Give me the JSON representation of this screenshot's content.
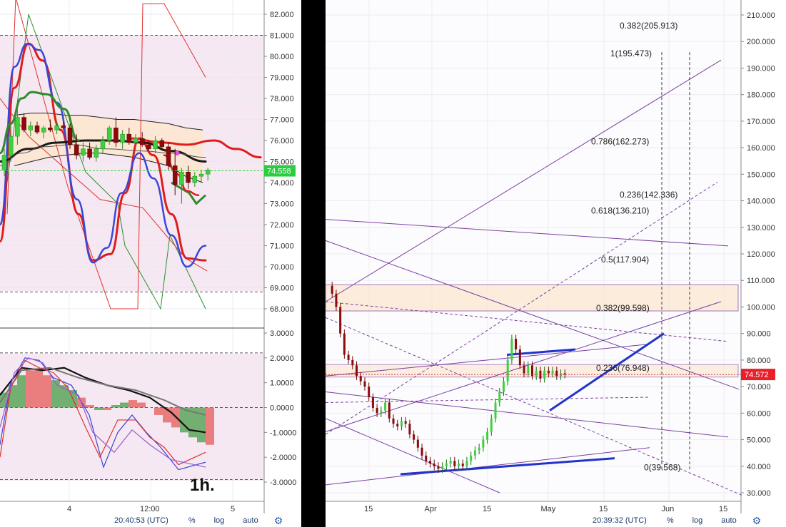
{
  "chart_data": [
    {
      "type": "candlestick",
      "timeframe_label": "1h.",
      "price_axis": {
        "ticks": [
          "82.000",
          "81.000",
          "80.000",
          "79.000",
          "78.000",
          "77.000",
          "76.000",
          "75.000",
          "74.000",
          "73.000",
          "72.000",
          "71.000",
          "70.000",
          "69.000",
          "68.000"
        ],
        "ylim": [
          67.4,
          82.4
        ]
      },
      "last_price": "74.558",
      "last_price_color": "#2ecc40",
      "x_ticks": [
        "4",
        "12:00",
        "5"
      ],
      "oscillator": {
        "ticks": [
          "3.0000",
          "2.0000",
          "1.0000",
          "0.0000",
          "-1.0000",
          "-2.0000",
          "-3.0000"
        ],
        "ylim": [
          -3.3,
          3.3
        ],
        "histogram": [
          0.6,
          0.9,
          1.3,
          1.5,
          1.5,
          1.3,
          1.1,
          0.9,
          0.7,
          0.4,
          0.1,
          -0.1,
          -0.1,
          0.1,
          0.2,
          0.3,
          0.2,
          0.0,
          -0.3,
          -0.6,
          -0.8,
          -1.0,
          -1.2,
          -1.4,
          -1.5
        ]
      },
      "candles": [
        {
          "o": 74.6,
          "h": 75.6,
          "l": 74.3,
          "c": 75.3
        },
        {
          "o": 75.3,
          "h": 76.8,
          "l": 75.0,
          "c": 76.2
        },
        {
          "o": 76.2,
          "h": 77.5,
          "l": 75.8,
          "c": 77.1
        },
        {
          "o": 77.1,
          "h": 77.3,
          "l": 76.4,
          "c": 76.5
        },
        {
          "o": 76.5,
          "h": 76.9,
          "l": 76.2,
          "c": 76.7
        },
        {
          "o": 76.7,
          "h": 76.9,
          "l": 76.3,
          "c": 76.4
        },
        {
          "o": 76.4,
          "h": 76.7,
          "l": 76.1,
          "c": 76.6
        },
        {
          "o": 76.6,
          "h": 77.0,
          "l": 76.4,
          "c": 76.5
        },
        {
          "o": 76.5,
          "h": 76.9,
          "l": 76.3,
          "c": 76.7
        },
        {
          "o": 76.7,
          "h": 76.9,
          "l": 76.5,
          "c": 76.6
        },
        {
          "o": 76.6,
          "h": 76.8,
          "l": 75.6,
          "c": 75.8
        },
        {
          "o": 75.8,
          "h": 76.3,
          "l": 75.1,
          "c": 75.3
        },
        {
          "o": 75.3,
          "h": 75.9,
          "l": 75.0,
          "c": 75.6
        },
        {
          "o": 75.6,
          "h": 75.9,
          "l": 75.1,
          "c": 75.2
        },
        {
          "o": 75.2,
          "h": 75.8,
          "l": 75.0,
          "c": 75.6
        },
        {
          "o": 75.6,
          "h": 76.2,
          "l": 75.4,
          "c": 76.0
        },
        {
          "o": 76.0,
          "h": 76.7,
          "l": 75.8,
          "c": 76.6
        },
        {
          "o": 76.6,
          "h": 77.1,
          "l": 75.7,
          "c": 75.9
        },
        {
          "o": 75.9,
          "h": 76.5,
          "l": 75.6,
          "c": 76.3
        },
        {
          "o": 76.3,
          "h": 76.6,
          "l": 75.8,
          "c": 75.9
        },
        {
          "o": 75.9,
          "h": 76.3,
          "l": 75.6,
          "c": 76.1
        },
        {
          "o": 76.1,
          "h": 76.4,
          "l": 75.7,
          "c": 75.8
        },
        {
          "o": 75.8,
          "h": 76.0,
          "l": 75.5,
          "c": 75.6
        },
        {
          "o": 75.6,
          "h": 76.2,
          "l": 75.4,
          "c": 76.0
        },
        {
          "o": 76.0,
          "h": 76.1,
          "l": 75.6,
          "c": 75.7
        },
        {
          "o": 75.7,
          "h": 75.9,
          "l": 74.6,
          "c": 74.8
        },
        {
          "o": 74.8,
          "h": 75.6,
          "l": 73.4,
          "c": 73.9
        },
        {
          "o": 73.9,
          "h": 74.7,
          "l": 73.0,
          "c": 74.5
        },
        {
          "o": 74.5,
          "h": 74.8,
          "l": 73.7,
          "c": 74.0
        },
        {
          "o": 74.0,
          "h": 74.5,
          "l": 73.8,
          "c": 74.3
        },
        {
          "o": 74.3,
          "h": 74.6,
          "l": 74.0,
          "c": 74.4
        },
        {
          "o": 74.4,
          "h": 74.7,
          "l": 74.1,
          "c": 74.6
        }
      ],
      "timestamp": "20:40:53 (UTC)"
    },
    {
      "type": "candlestick",
      "price_axis": {
        "ticks": [
          "210.000",
          "200.000",
          "190.000",
          "180.000",
          "170.000",
          "160.000",
          "150.000",
          "140.000",
          "130.000",
          "120.000",
          "110.000",
          "100.000",
          "90.000",
          "80.000",
          "70.000",
          "60.000",
          "50.000",
          "40.000",
          "30.000"
        ],
        "ylim": [
          27,
          214
        ]
      },
      "last_price": "74.572",
      "last_price_color": "#e8202a",
      "x_ticks": [
        "15",
        "Apr",
        "15",
        "May",
        "15",
        "Jun",
        "15"
      ],
      "fib_levels": [
        {
          "label": "0.382(205.913)",
          "value": 205.913
        },
        {
          "label": "1(195.473)",
          "value": 195.473
        },
        {
          "label": "0.786(162.273)",
          "value": 162.273
        },
        {
          "label": "0.236(142.336)",
          "value": 142.336
        },
        {
          "label": "0.618(136.210)",
          "value": 136.21
        },
        {
          "label": "0.5(117.904)",
          "value": 117.904
        },
        {
          "label": "0.382(99.598)",
          "value": 99.598
        },
        {
          "label": "0.236(76.948)",
          "value": 76.948
        },
        {
          "label": "0(39.568)",
          "value": 39.568
        }
      ],
      "series_path": [
        [
          0,
          108
        ],
        [
          4,
          105
        ],
        [
          8,
          100
        ],
        [
          12,
          90
        ],
        [
          16,
          82
        ],
        [
          20,
          80
        ],
        [
          24,
          78
        ],
        [
          28,
          74
        ],
        [
          32,
          72
        ],
        [
          36,
          70
        ],
        [
          40,
          66
        ],
        [
          44,
          62
        ],
        [
          48,
          60
        ],
        [
          52,
          61
        ],
        [
          56,
          64
        ],
        [
          60,
          58
        ],
        [
          64,
          56
        ],
        [
          68,
          55
        ],
        [
          72,
          57
        ],
        [
          76,
          56
        ],
        [
          80,
          52
        ],
        [
          84,
          50
        ],
        [
          88,
          47
        ],
        [
          92,
          44
        ],
        [
          96,
          42
        ],
        [
          100,
          41
        ],
        [
          104,
          40
        ],
        [
          108,
          39
        ],
        [
          112,
          40
        ],
        [
          116,
          41
        ],
        [
          120,
          42
        ],
        [
          124,
          40
        ],
        [
          128,
          41
        ],
        [
          132,
          40
        ],
        [
          136,
          42
        ],
        [
          140,
          44
        ],
        [
          144,
          46
        ],
        [
          148,
          47
        ],
        [
          152,
          50
        ],
        [
          156,
          53
        ],
        [
          160,
          58
        ],
        [
          164,
          64
        ],
        [
          168,
          68
        ],
        [
          172,
          72
        ],
        [
          176,
          80
        ],
        [
          180,
          88
        ],
        [
          184,
          84
        ],
        [
          188,
          78
        ],
        [
          192,
          75
        ],
        [
          196,
          78
        ],
        [
          200,
          74
        ],
        [
          204,
          76
        ],
        [
          208,
          73
        ],
        [
          212,
          76
        ],
        [
          216,
          75
        ],
        [
          220,
          76
        ],
        [
          224,
          74
        ],
        [
          228,
          75
        ],
        [
          232,
          74.6
        ]
      ],
      "timestamp": "20:39:32 (UTC)"
    }
  ],
  "toolbar_left": {
    "timestamp": "20:40:53 (UTC)",
    "percent": "%",
    "log": "log",
    "auto": "auto"
  },
  "toolbar_right": {
    "timestamp": "20:39:32 (UTC)",
    "percent": "%",
    "log": "log",
    "auto": "auto"
  },
  "colors": {
    "bull": "#3ed13e",
    "bear": "#8b0a0a",
    "pink_band": "#f5e8f2",
    "orange_band": "#fbe6cf",
    "purple_line": "#7b3fa0",
    "blue_line": "#2234c8"
  }
}
